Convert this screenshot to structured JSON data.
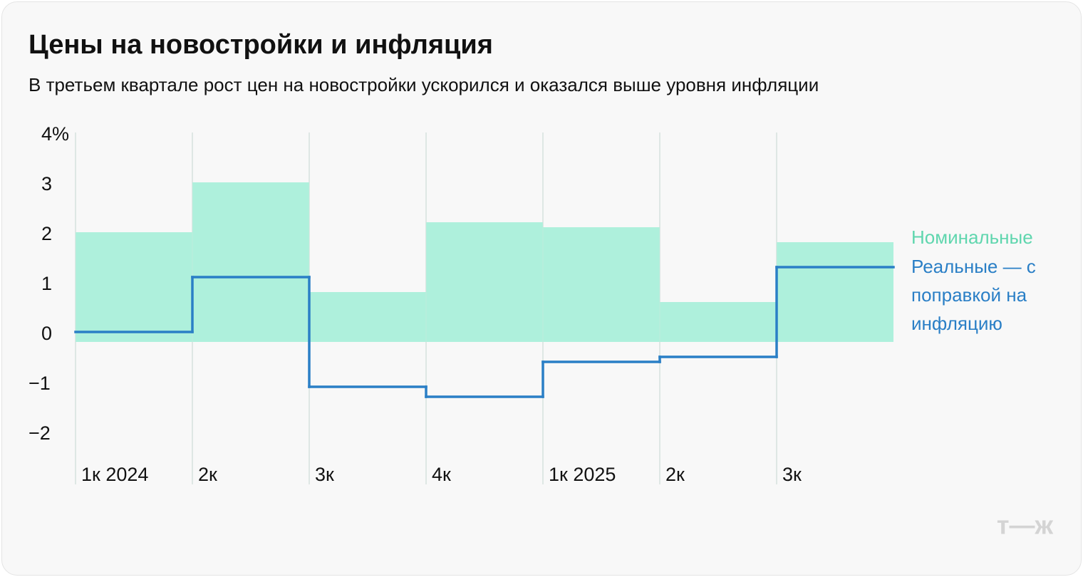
{
  "chart_data": {
    "type": "bar-step",
    "title": "Цены на новостройки и инфляция",
    "subtitle": "В третьем квартале рост цен на новостройки ускорился и оказался выше уровня инфляции",
    "categories": [
      "1к 2024",
      "2к",
      "3к",
      "4к",
      "1к 2025",
      "2к",
      "3к"
    ],
    "series": [
      {
        "name": "Номинальные",
        "color": "#aef0dc",
        "label_color": "#5fd6ae",
        "values": [
          2.2,
          3.2,
          1.0,
          2.4,
          2.3,
          0.8,
          2.0
        ]
      },
      {
        "name": "Реальные — с поправкой на инфляцию",
        "color": "#2a7fc6",
        "values": [
          0.2,
          1.3,
          -0.9,
          -1.1,
          -0.4,
          -0.3,
          1.5
        ]
      }
    ],
    "ylim": [
      -2.9,
      4.2
    ],
    "yticks": [
      {
        "value": 4,
        "label": "4%"
      },
      3,
      2,
      1,
      0,
      {
        "value": -1,
        "label": "−1"
      },
      {
        "value": -2,
        "label": "−2"
      }
    ]
  },
  "logo": "т—ж"
}
